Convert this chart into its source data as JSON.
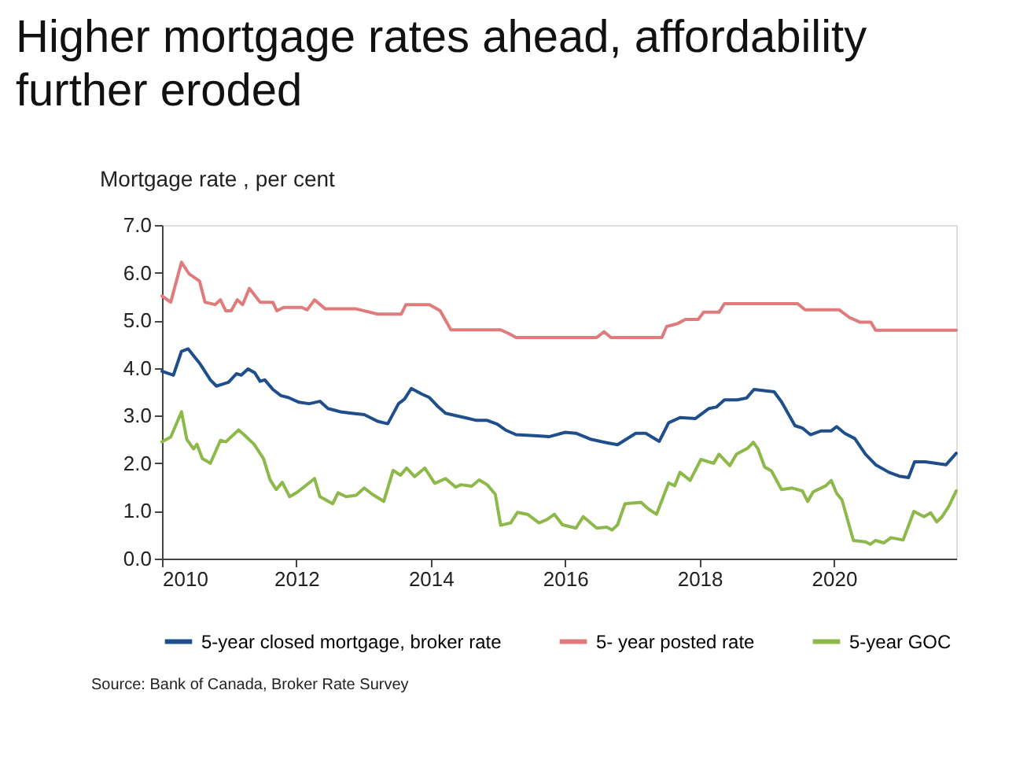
{
  "chart_data": {
    "type": "line",
    "title": "Higher mortgage rates ahead, affordability further eroded",
    "ylabel": "Mortgage rate , per cent",
    "xlim": [
      2010,
      2021.82
    ],
    "xticks": [
      2010,
      2012,
      2014,
      2016,
      2018,
      2020
    ],
    "ylim": [
      0,
      7
    ],
    "yticks": [
      {
        "value": 0,
        "label": "0.0"
      },
      {
        "value": 1,
        "label": "1.0"
      },
      {
        "value": 2,
        "label": "2.0"
      },
      {
        "value": 3,
        "label": "3.0"
      },
      {
        "value": 4,
        "label": "4.0"
      },
      {
        "value": 5,
        "label": "5.0"
      },
      {
        "value": 6,
        "label": "6.0"
      },
      {
        "value": 7,
        "label": "7.0"
      }
    ],
    "grid": false,
    "legend": "bottom",
    "marker": "none",
    "line_style": "solid",
    "annotations": [
      "Source: Bank of Canada, Broker Rate Survey"
    ],
    "series": [
      {
        "name": "5-year closed mortgage, broker rate",
        "color": "#1f4e8c",
        "x": [
          2010.0,
          2010.17,
          2010.29,
          2010.39,
          2010.56,
          2010.72,
          2010.81,
          2010.99,
          2011.11,
          2011.18,
          2011.28,
          2011.38,
          2011.46,
          2011.53,
          2011.65,
          2011.77,
          2011.88,
          2012.04,
          2012.19,
          2012.35,
          2012.47,
          2012.66,
          2012.82,
          2013.01,
          2013.21,
          2013.36,
          2013.52,
          2013.61,
          2013.71,
          2013.87,
          2013.98,
          2014.1,
          2014.22,
          2014.37,
          2014.53,
          2014.68,
          2014.84,
          2014.99,
          2015.11,
          2015.27,
          2015.54,
          2015.77,
          2016.0,
          2016.16,
          2016.39,
          2016.62,
          2016.78,
          2017.05,
          2017.2,
          2017.4,
          2017.54,
          2017.71,
          2017.94,
          2018.14,
          2018.25,
          2018.37,
          2018.56,
          2018.7,
          2018.81,
          2019.11,
          2019.22,
          2019.42,
          2019.53,
          2019.65,
          2019.81,
          2019.96,
          2020.04,
          2020.16,
          2020.31,
          2020.47,
          2020.62,
          2020.82,
          2020.97,
          2021.11,
          2021.2,
          2021.36,
          2021.67,
          2021.82
        ],
        "values": [
          3.93,
          3.85,
          4.35,
          4.4,
          4.1,
          3.75,
          3.62,
          3.7,
          3.88,
          3.85,
          3.98,
          3.9,
          3.72,
          3.75,
          3.55,
          3.42,
          3.38,
          3.28,
          3.25,
          3.3,
          3.15,
          3.08,
          3.05,
          3.02,
          2.88,
          2.83,
          3.25,
          3.35,
          3.57,
          3.45,
          3.38,
          3.2,
          3.05,
          3.0,
          2.95,
          2.9,
          2.9,
          2.82,
          2.7,
          2.6,
          2.58,
          2.56,
          2.65,
          2.63,
          2.5,
          2.43,
          2.39,
          2.63,
          2.63,
          2.46,
          2.85,
          2.96,
          2.94,
          3.15,
          3.18,
          3.33,
          3.33,
          3.37,
          3.55,
          3.5,
          3.29,
          2.79,
          2.74,
          2.6,
          2.68,
          2.68,
          2.77,
          2.63,
          2.52,
          2.19,
          1.97,
          1.81,
          1.73,
          1.7,
          2.03,
          2.03,
          1.97,
          2.21
        ]
      },
      {
        "name": "5- year posted rate",
        "color": "#e07b7b",
        "x": [
          2010.0,
          2010.13,
          2010.29,
          2010.4,
          2010.56,
          2010.64,
          2010.79,
          2010.87,
          2010.95,
          2011.03,
          2011.12,
          2011.2,
          2011.3,
          2011.46,
          2011.65,
          2011.71,
          2011.81,
          2012.08,
          2012.16,
          2012.27,
          2012.43,
          2012.89,
          2013.21,
          2013.56,
          2013.63,
          2013.98,
          2014.14,
          2014.3,
          2015.04,
          2015.15,
          2015.27,
          2016.47,
          2016.58,
          2016.68,
          2017.44,
          2017.51,
          2017.67,
          2017.79,
          2017.98,
          2018.06,
          2018.29,
          2018.37,
          2019.46,
          2019.57,
          2020.08,
          2020.23,
          2020.39,
          2020.55,
          2020.62,
          2021.82
        ],
        "values": [
          5.51,
          5.38,
          6.22,
          5.98,
          5.82,
          5.38,
          5.33,
          5.43,
          5.2,
          5.2,
          5.43,
          5.33,
          5.67,
          5.38,
          5.38,
          5.2,
          5.27,
          5.27,
          5.22,
          5.43,
          5.24,
          5.24,
          5.13,
          5.13,
          5.33,
          5.33,
          5.2,
          4.8,
          4.8,
          4.73,
          4.64,
          4.64,
          4.76,
          4.64,
          4.64,
          4.87,
          4.93,
          5.02,
          5.02,
          5.17,
          5.17,
          5.35,
          5.35,
          5.22,
          5.22,
          5.06,
          4.96,
          4.96,
          4.79,
          4.79
        ]
      },
      {
        "name": "5-year GOC",
        "color": "#8db84a",
        "x": [
          2010.0,
          2010.13,
          2010.29,
          2010.37,
          2010.47,
          2010.52,
          2010.6,
          2010.72,
          2010.87,
          2010.95,
          2011.14,
          2011.22,
          2011.37,
          2011.51,
          2011.61,
          2011.7,
          2011.79,
          2011.9,
          2012.02,
          2012.27,
          2012.35,
          2012.54,
          2012.62,
          2012.74,
          2012.89,
          2013.01,
          2013.13,
          2013.3,
          2013.44,
          2013.55,
          2013.64,
          2013.76,
          2013.91,
          2014.06,
          2014.22,
          2014.37,
          2014.45,
          2014.61,
          2014.72,
          2014.84,
          2014.96,
          2015.04,
          2015.19,
          2015.29,
          2015.44,
          2015.61,
          2015.73,
          2015.84,
          2015.96,
          2016.16,
          2016.27,
          2016.47,
          2016.62,
          2016.7,
          2016.78,
          2016.89,
          2017.13,
          2017.24,
          2017.36,
          2017.54,
          2017.63,
          2017.71,
          2017.86,
          2018.02,
          2018.21,
          2018.29,
          2018.45,
          2018.55,
          2018.72,
          2018.8,
          2018.87,
          2018.97,
          2019.07,
          2019.22,
          2019.38,
          2019.53,
          2019.61,
          2019.69,
          2019.88,
          2019.96,
          2020.04,
          2020.12,
          2020.29,
          2020.47,
          2020.54,
          2020.62,
          2020.74,
          2020.85,
          2021.03,
          2021.19,
          2021.34,
          2021.44,
          2021.53,
          2021.61,
          2021.71,
          2021.82
        ],
        "values": [
          2.45,
          2.55,
          3.08,
          2.5,
          2.3,
          2.4,
          2.1,
          2.0,
          2.48,
          2.45,
          2.7,
          2.6,
          2.4,
          2.1,
          1.65,
          1.45,
          1.6,
          1.3,
          1.4,
          1.68,
          1.3,
          1.15,
          1.38,
          1.3,
          1.33,
          1.48,
          1.35,
          1.2,
          1.85,
          1.75,
          1.9,
          1.72,
          1.9,
          1.58,
          1.68,
          1.5,
          1.55,
          1.52,
          1.65,
          1.55,
          1.35,
          0.7,
          0.75,
          0.97,
          0.93,
          0.75,
          0.82,
          0.93,
          0.71,
          0.64,
          0.88,
          0.64,
          0.66,
          0.6,
          0.71,
          1.15,
          1.18,
          1.04,
          0.93,
          1.59,
          1.53,
          1.81,
          1.64,
          2.08,
          2.0,
          2.19,
          1.95,
          2.19,
          2.32,
          2.44,
          2.3,
          1.92,
          1.84,
          1.45,
          1.48,
          1.42,
          1.2,
          1.4,
          1.53,
          1.64,
          1.37,
          1.23,
          0.38,
          0.35,
          0.3,
          0.38,
          0.33,
          0.44,
          0.39,
          0.99,
          0.88,
          0.96,
          0.77,
          0.88,
          1.1,
          1.42
        ]
      }
    ]
  }
}
